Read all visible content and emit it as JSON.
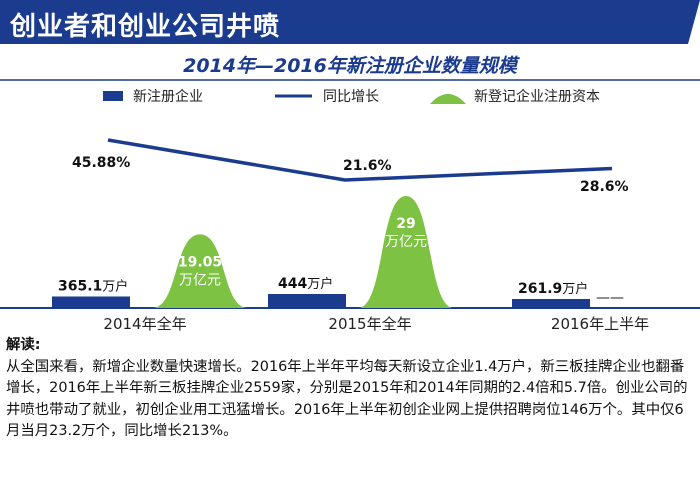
{
  "header": {
    "banner_title": "创业者和创业公司井喷"
  },
  "chart_data": {
    "type": "bar",
    "title": "2014年—2016年新注册企业数量规模",
    "categories": [
      "2014年全年",
      "2015年全年",
      "2016年上半年"
    ],
    "legend": [
      "新注册企业",
      "同比增长",
      "新登记企业注册资本"
    ],
    "series": [
      {
        "name": "新注册企业",
        "type": "bar",
        "unit": "万户",
        "values": [
          365.1,
          444,
          261.9
        ],
        "labels": [
          "365.1",
          "444",
          "261.9"
        ]
      },
      {
        "name": "同比增长",
        "type": "line",
        "values": [
          45.88,
          21.6,
          28.6
        ],
        "labels": [
          "45.88%",
          "21.6%",
          "28.6%"
        ]
      },
      {
        "name": "新登记企业注册资本",
        "type": "area",
        "unit": "万亿元",
        "values": [
          19.05,
          29,
          null
        ],
        "labels": [
          "19.05",
          "29",
          "——"
        ],
        "unit_label": "万亿元"
      }
    ],
    "colors": {
      "bar": "#1b3b8f",
      "line": "#1b3b8f",
      "area": "#7dc242"
    }
  },
  "notes": {
    "heading": "解读:",
    "body": "从全国来看，新增企业数量快速增长。2016年上半年平均每天新设立企业1.4万户，新三板挂牌企业也翻番增长，2016年上半年新三板挂牌企业2559家，分别是2015年和2014年同期的2.4倍和5.7倍。创业公司的井喷也带动了就业，初创企业用工迅猛增长。2016年上半年初创企业网上提供招聘岗位146万个。其中仅6月当月23.2万个，同比增长213%。"
  }
}
